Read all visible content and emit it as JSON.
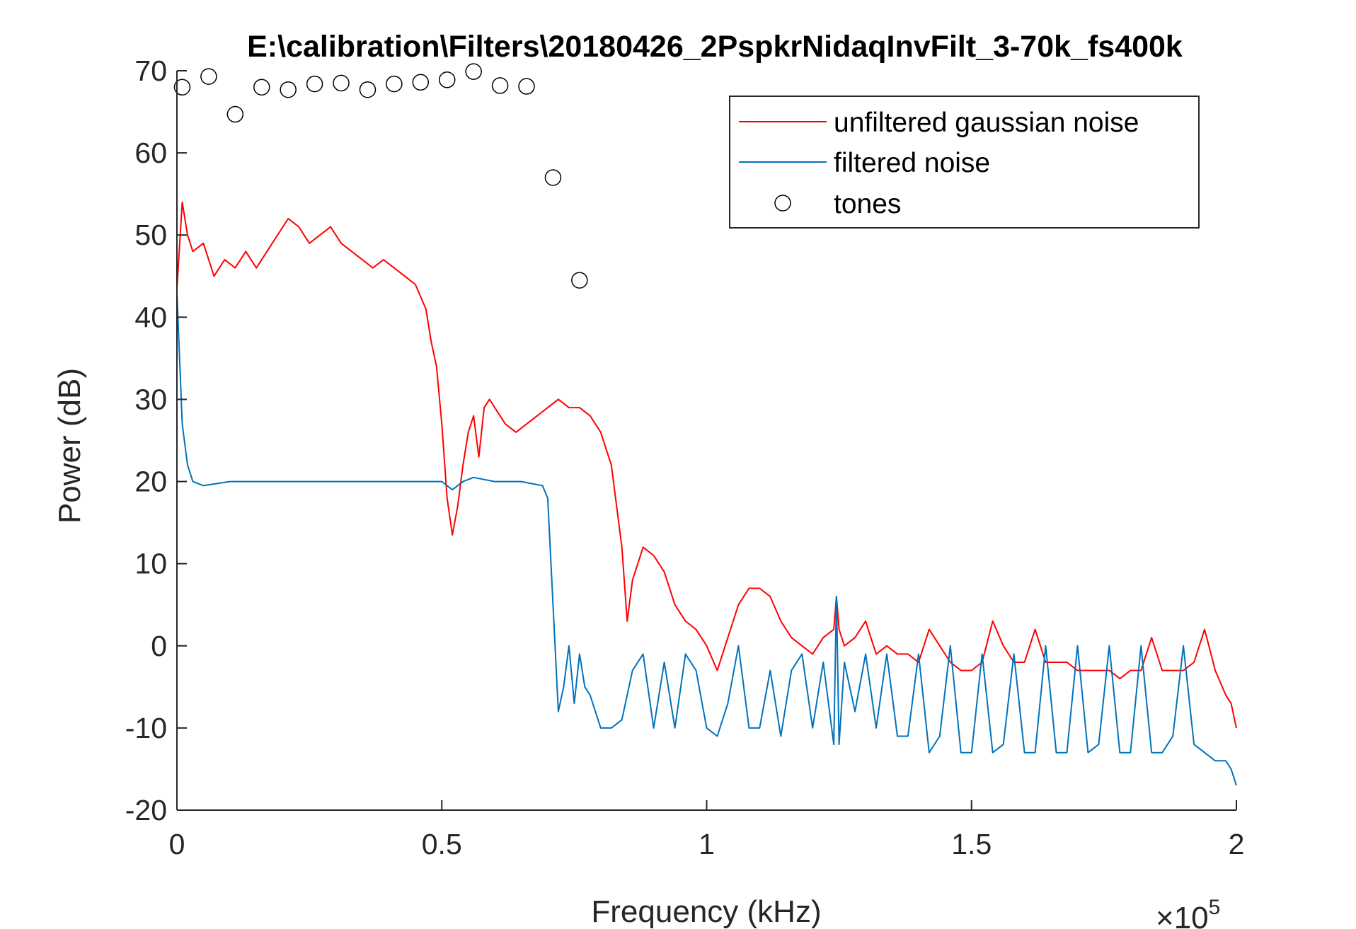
{
  "chart_data": {
    "type": "line",
    "title": "E:\\calibration\\Filters\\20180426_2PspkrNidaqInvFilt_3-70k_fs400k",
    "xlabel": "Frequency (kHz)",
    "ylabel": "Power (dB)",
    "x_exponent_label": "×10",
    "x_exponent_power": "5",
    "xlim": [
      0,
      200000
    ],
    "ylim": [
      -20,
      70
    ],
    "x_ticks": [
      0,
      50000,
      100000,
      150000,
      200000
    ],
    "x_tick_labels": [
      "0",
      "0.5",
      "1",
      "1.5",
      "2"
    ],
    "y_ticks": [
      -20,
      -10,
      0,
      10,
      20,
      30,
      40,
      50,
      60,
      70
    ],
    "y_tick_labels": [
      "-20",
      "-10",
      "0",
      "10",
      "20",
      "30",
      "40",
      "50",
      "60",
      "70"
    ],
    "legend_position": "top-right",
    "series": [
      {
        "name": "unfiltered gaussian noise",
        "color": "#ff0000",
        "x": [
          0,
          1000,
          2000,
          3000,
          5000,
          7000,
          9000,
          11000,
          13000,
          15000,
          17000,
          19000,
          21000,
          23000,
          25000,
          27000,
          29000,
          31000,
          33000,
          35000,
          37000,
          39000,
          41000,
          43000,
          45000,
          47000,
          48000,
          49000,
          50000,
          51000,
          52000,
          53000,
          54000,
          55000,
          56000,
          57000,
          58000,
          59000,
          60000,
          62000,
          64000,
          66000,
          68000,
          70000,
          72000,
          74000,
          76000,
          78000,
          80000,
          82000,
          84000,
          85000,
          86000,
          88000,
          90000,
          92000,
          94000,
          96000,
          98000,
          100000,
          102000,
          104000,
          106000,
          108000,
          110000,
          112000,
          114000,
          116000,
          118000,
          120000,
          122000,
          124000,
          124500,
          125000,
          126000,
          128000,
          130000,
          132000,
          134000,
          136000,
          138000,
          140000,
          142000,
          144000,
          146000,
          148000,
          150000,
          152000,
          154000,
          156000,
          158000,
          160000,
          162000,
          164000,
          166000,
          168000,
          170000,
          172000,
          174000,
          176000,
          178000,
          180000,
          182000,
          184000,
          186000,
          188000,
          190000,
          192000,
          194000,
          196000,
          198000,
          199000,
          200000
        ],
        "y": [
          43.5,
          54,
          50,
          48,
          49,
          45,
          47,
          46,
          48,
          46,
          48,
          50,
          52,
          51,
          49,
          50,
          51,
          49,
          48,
          47,
          46,
          47,
          46,
          45,
          44,
          41,
          37,
          34,
          27,
          18,
          13.5,
          17,
          22,
          26,
          28,
          23,
          29,
          30,
          29,
          27,
          26,
          27,
          28,
          29,
          30,
          29,
          29,
          28,
          26,
          22,
          12,
          3,
          8,
          12,
          11,
          9,
          5,
          3,
          2,
          0,
          -3,
          1,
          5,
          7,
          7,
          6,
          3,
          1,
          0,
          -1,
          1,
          2,
          6,
          2,
          0,
          1,
          3,
          -1,
          0,
          -1,
          -1,
          -2,
          2,
          0,
          -2,
          -3,
          -3,
          -2,
          3,
          0,
          -2,
          -2,
          2,
          -2,
          -2,
          -2,
          -3,
          -3,
          -3,
          -3,
          -4,
          -3,
          -3,
          1,
          -3,
          -3,
          -3,
          -2,
          2,
          -3,
          -6,
          -7,
          -10
        ]
      },
      {
        "name": "filtered noise",
        "color": "#0072bd",
        "x": [
          0,
          1000,
          2000,
          3000,
          5000,
          10000,
          20000,
          30000,
          40000,
          50000,
          52000,
          54000,
          56000,
          60000,
          65000,
          69000,
          70000,
          71000,
          72000,
          73000,
          74000,
          75000,
          76000,
          77000,
          78000,
          80000,
          82000,
          84000,
          86000,
          88000,
          90000,
          92000,
          94000,
          96000,
          98000,
          100000,
          102000,
          104000,
          106000,
          108000,
          110000,
          112000,
          114000,
          116000,
          118000,
          120000,
          122000,
          124000,
          124500,
          125000,
          126000,
          128000,
          130000,
          132000,
          134000,
          136000,
          138000,
          140000,
          142000,
          144000,
          146000,
          148000,
          150000,
          152000,
          154000,
          156000,
          158000,
          160000,
          162000,
          164000,
          166000,
          168000,
          170000,
          172000,
          174000,
          176000,
          178000,
          180000,
          182000,
          184000,
          186000,
          188000,
          190000,
          192000,
          194000,
          196000,
          198000,
          199000,
          200000
        ],
        "y": [
          43,
          27,
          22,
          20,
          19.5,
          20,
          20,
          20,
          20,
          20,
          19,
          20,
          20.5,
          20,
          20,
          19.5,
          18,
          5,
          -8,
          -5,
          0,
          -7,
          -1,
          -5,
          -6,
          -10,
          -10,
          -9,
          -3,
          -1,
          -10,
          -2,
          -10,
          -1,
          -3,
          -10,
          -11,
          -7,
          0,
          -10,
          -10,
          -3,
          -11,
          -3,
          -1,
          -10,
          -2,
          -12,
          6,
          -12,
          -2,
          -8,
          -1,
          -10,
          -1,
          -11,
          -11,
          -1,
          -13,
          -11,
          0,
          -13,
          -13,
          -1,
          -13,
          -12,
          -1,
          -13,
          -13,
          0,
          -13,
          -13,
          0,
          -13,
          -12,
          0,
          -13,
          -13,
          0,
          -13,
          -13,
          -11,
          0,
          -12,
          -13,
          -14,
          -14,
          -15,
          -17
        ]
      },
      {
        "name": "tones",
        "type": "scatter",
        "marker": "circle-open",
        "color": "#000000",
        "x": [
          1000,
          6000,
          11000,
          16000,
          21000,
          26000,
          31000,
          36000,
          41000,
          46000,
          51000,
          56000,
          61000,
          66000,
          71000,
          76000
        ],
        "y": [
          68,
          69.3,
          64.7,
          68,
          67.7,
          68.4,
          68.5,
          67.7,
          68.4,
          68.6,
          68.9,
          69.9,
          68.2,
          68.1,
          57,
          44.5
        ]
      }
    ]
  }
}
